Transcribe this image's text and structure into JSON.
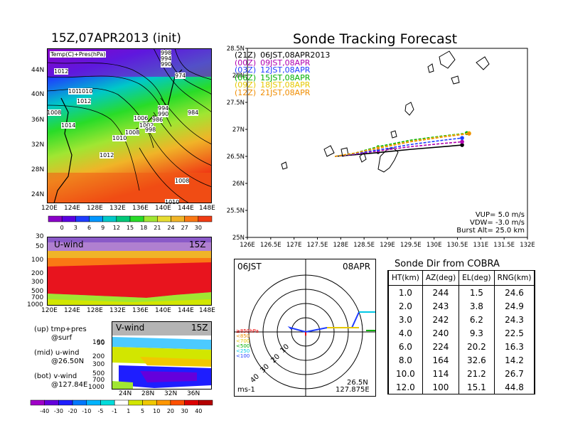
{
  "map_panel": {
    "title": "15Z,07APR2013 (init)",
    "subtitle": "Temp(C)+Pres(hPa)",
    "lat_labels": [
      "44N",
      "40N",
      "36N",
      "32N",
      "28N",
      "24N"
    ],
    "lon_labels": [
      "120E",
      "124E",
      "128E",
      "132E",
      "136E",
      "140E",
      "144E",
      "148E"
    ],
    "pressure_labels": [
      "1012",
      "1010",
      "1010",
      "1012",
      "1008",
      "1014",
      "1010",
      "1012",
      "1008",
      "1006",
      "1002",
      "998",
      "994",
      "990",
      "986",
      "984",
      "974",
      "998",
      "994",
      "990",
      "1008",
      "1010"
    ],
    "colorbar": {
      "ticks": [
        "0",
        "3",
        "6",
        "9",
        "12",
        "15",
        "18",
        "21",
        "24",
        "27",
        "30"
      ],
      "colors": [
        "#8a00c8",
        "#5a00e0",
        "#1e3cff",
        "#0096ff",
        "#00c8c8",
        "#00c878",
        "#28dc28",
        "#a0e632",
        "#e6dc32",
        "#f0b428",
        "#fa7814",
        "#f03c14"
      ]
    }
  },
  "uwind_panel": {
    "label": "U-wind",
    "time": "15Z",
    "y_labels": [
      "30",
      "50",
      "100",
      "200",
      "300",
      "500",
      "700",
      "1000"
    ],
    "x_labels": [
      "120E",
      "124E",
      "128E",
      "132E",
      "136E",
      "140E",
      "144E",
      "148E"
    ]
  },
  "vwind_panel": {
    "label": "V-wind",
    "time": "15Z",
    "y_labels": [
      "50",
      "100",
      "200",
      "300",
      "500",
      "700",
      "1000"
    ],
    "x_labels": [
      "24N",
      "28N",
      "32N",
      "36N"
    ],
    "colorbar_ticks": [
      "-40",
      "-30",
      "-20",
      "-10",
      "-5",
      "-1",
      "1",
      "5",
      "10",
      "20",
      "30",
      "40"
    ],
    "colorbar_colors": [
      "#a000c8",
      "#6400dc",
      "#1e1eff",
      "#0078ff",
      "#00b4ff",
      "#00dcdc",
      "#ffffff",
      "#d2e600",
      "#f0c800",
      "#ff9600",
      "#ff5000",
      "#dc0000",
      "#b40000"
    ]
  },
  "legend_text": {
    "up": "(up) tmp+pres",
    "up2": "@surf",
    "mid": "(mid) u-wind",
    "mid2": "@26.50N",
    "bot": "(bot) v-wind",
    "bot2": "@127.84E"
  },
  "tracking": {
    "title": "Sonde Tracking Forecast",
    "entries": [
      {
        "code": "(21Z)",
        "time": "06JST,08APR2013",
        "color": "#000000"
      },
      {
        "code": "(00Z)",
        "time": "09JST,08APR",
        "color": "#b000b0"
      },
      {
        "code": "(03Z)",
        "time": "12JST,08APR",
        "color": "#1e3cff"
      },
      {
        "code": "(06Z)",
        "time": "15JST,08APR",
        "color": "#00b000"
      },
      {
        "code": "(09Z)",
        "time": "18JST,08APR",
        "color": "#e6c800"
      },
      {
        "code": "(12Z)",
        "time": "21JST,08APR",
        "color": "#f08c00"
      }
    ],
    "params": [
      "VUP=  5.0  m/s",
      "VDW= -3.0  m/s",
      "Burst Alt=  25.0  km"
    ]
  },
  "chart_data": [
    {
      "type": "line",
      "title": "Sonde Tracking Forecast",
      "xlabel": "",
      "ylabel": "",
      "xlim": [
        126,
        132
      ],
      "ylim": [
        25,
        28.5
      ],
      "x_ticks": [
        "126E",
        "126.5E",
        "127E",
        "127.5E",
        "128E",
        "128.5E",
        "129E",
        "129.5E",
        "130E",
        "130.5E",
        "131E",
        "131.5E",
        "132E"
      ],
      "y_ticks": [
        "25N",
        "25.5N",
        "26N",
        "26.5N",
        "27N",
        "27.5N",
        "28N",
        "28.5N"
      ],
      "series": [
        {
          "name": "(21Z) 06JST,08APR2013",
          "color": "#000000",
          "x": [
            127.875,
            128.3,
            128.8,
            129.5,
            130.2,
            130.6
          ],
          "y": [
            26.5,
            26.53,
            26.57,
            26.63,
            26.68,
            26.71
          ]
        },
        {
          "name": "(00Z) 09JST,08APR",
          "color": "#b000b0",
          "x": [
            127.875,
            128.3,
            128.8,
            129.5,
            130.2,
            130.6
          ],
          "y": [
            26.5,
            26.54,
            26.6,
            26.68,
            26.74,
            26.77
          ]
        },
        {
          "name": "(03Z) 12JST,08APR",
          "color": "#1e3cff",
          "x": [
            127.875,
            128.3,
            128.8,
            129.5,
            130.2,
            130.6
          ],
          "y": [
            26.5,
            26.55,
            26.62,
            26.72,
            26.8,
            26.84
          ]
        },
        {
          "name": "(06Z) 15JST,08APR",
          "color": "#00b000",
          "x": [
            127.875,
            128.3,
            128.8,
            129.5,
            130.2,
            130.7
          ],
          "y": [
            26.5,
            26.56,
            26.68,
            26.8,
            26.88,
            26.93
          ]
        },
        {
          "name": "(09Z) 18JST,08APR",
          "color": "#e6c800",
          "x": [
            127.875,
            128.3,
            128.8,
            129.5,
            130.2,
            130.75
          ],
          "y": [
            26.5,
            26.56,
            26.66,
            26.78,
            26.87,
            26.93
          ]
        },
        {
          "name": "(12Z) 21JST,08APR",
          "color": "#f08c00",
          "x": [
            127.875,
            128.3,
            128.8,
            129.5,
            130.2,
            130.75
          ],
          "y": [
            26.5,
            26.56,
            26.65,
            26.77,
            26.86,
            26.92
          ]
        }
      ]
    },
    {
      "type": "table",
      "title": "Sonde Dir from COBRA",
      "columns": [
        "HT(km)",
        "AZ(deg)",
        "EL(deg)",
        "RNG(km)"
      ],
      "rows": [
        [
          "1.0",
          "244",
          "1.5",
          "24.6"
        ],
        [
          "2.0",
          "243",
          "3.8",
          "24.9"
        ],
        [
          "3.0",
          "242",
          "6.2",
          "24.3"
        ],
        [
          "4.0",
          "240",
          "9.3",
          "22.5"
        ],
        [
          "6.0",
          "224",
          "20.2",
          "16.3"
        ],
        [
          "8.0",
          "164",
          "32.6",
          "14.2"
        ],
        [
          "10.0",
          "114",
          "21.2",
          "26.7"
        ],
        [
          "12.0",
          "100",
          "15.1",
          "44.8"
        ]
      ]
    }
  ],
  "hodograph": {
    "left_label": "06JST",
    "right_label": "08APR",
    "unit": "ms-1",
    "loc1": "26.5N",
    "loc2": "127.875E",
    "ring_labels": [
      "10",
      "20",
      "30",
      "40"
    ],
    "level_legend": [
      {
        "text": "≥850hPa",
        "color": "#f00000"
      },
      {
        "text": "<850",
        "color": "#f08c00"
      },
      {
        "text": "<700",
        "color": "#e6c800"
      },
      {
        "text": "<500",
        "color": "#00b000"
      },
      {
        "text": "<250",
        "color": "#00c8e6"
      },
      {
        "text": "<100",
        "color": "#1e3cff"
      }
    ]
  }
}
